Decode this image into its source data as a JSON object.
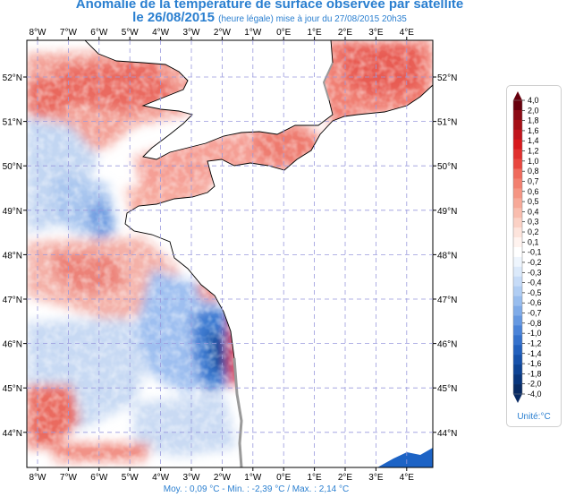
{
  "title": {
    "line1": "Anomalie de la température de surface observée par satellite",
    "line2_date": "le 26/08/2015",
    "line2_sub": "(heure légale) mise à jour du 27/08/2015 20h35"
  },
  "axes": {
    "lon_labels": [
      "8°W",
      "7°W",
      "6°W",
      "5°W",
      "4°W",
      "3°W",
      "2°W",
      "1°W",
      "0°E",
      "1°E",
      "2°E",
      "3°E",
      "4°E"
    ],
    "lat_labels": [
      "52°N",
      "51°N",
      "50°N",
      "49°N",
      "48°N",
      "47°N",
      "46°N",
      "45°N",
      "44°N"
    ]
  },
  "stats": {
    "text": "Moy. : 0,09 °C   -   Min. : -2,39 °C / Max. : 2,14 °C"
  },
  "legend": {
    "unit": "Unité:°C",
    "labels": [
      "4,0",
      "2,0",
      "1,8",
      "1,6",
      "1,4",
      "1,2",
      "1,0",
      "0,8",
      "0,7",
      "0,6",
      "0,5",
      "0,4",
      "0,3",
      "0,2",
      "0,1",
      "-0,1",
      "-0,2",
      "-0,3",
      "-0,4",
      "-0,5",
      "-0,6",
      "-0,7",
      "-0,8",
      "-1,0",
      "-1,2",
      "-1,4",
      "-1,6",
      "-1,8",
      "-2,0",
      "-4,0"
    ],
    "colors": [
      "#67000d",
      "#8b0a14",
      "#a50f15",
      "#c0141c",
      "#d7191c",
      "#e0302e",
      "#e8473f",
      "#ef6a5c",
      "#f2806f",
      "#f59583",
      "#f7a998",
      "#f9bdae",
      "#fbd1c5",
      "#fde4dc",
      "#fff3ef",
      "#ffffff",
      "#eef5fd",
      "#dbe9fa",
      "#c6dbf7",
      "#b0cdf3",
      "#98bdee",
      "#7fabe8",
      "#6598e1",
      "#4a83d8",
      "#3471cc",
      "#2260bd",
      "#1651aa",
      "#0d4394",
      "#08357c",
      "#082a63"
    ]
  }
}
